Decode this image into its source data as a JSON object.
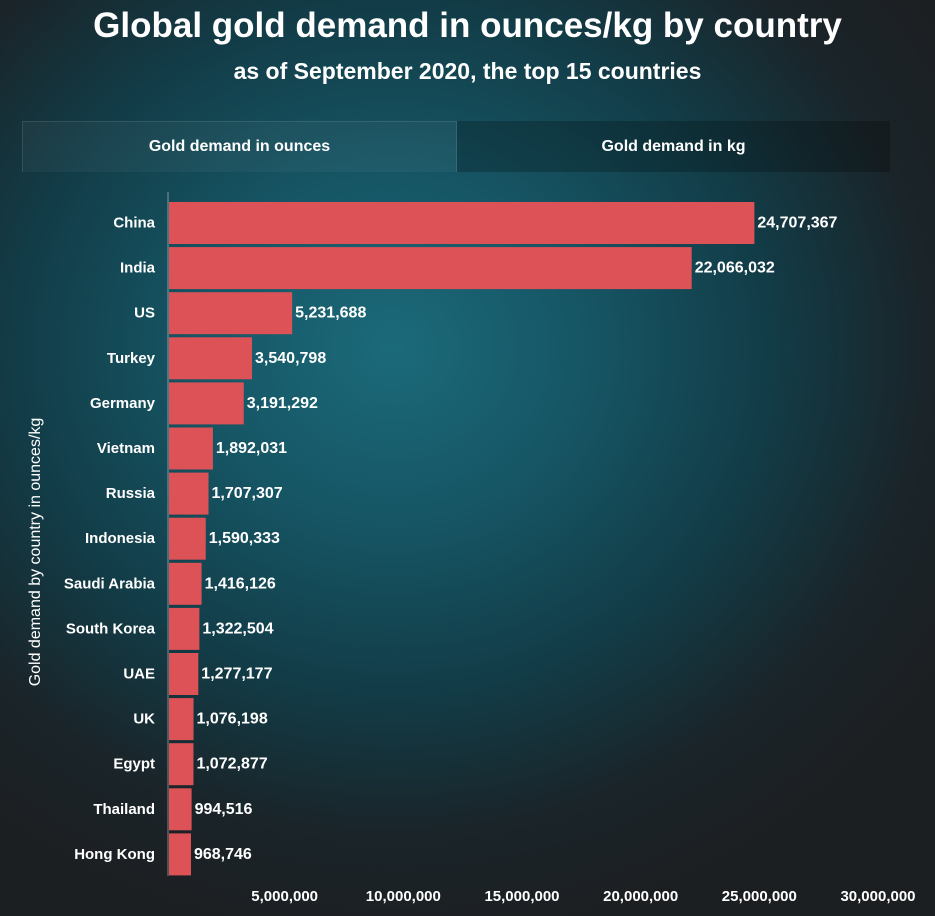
{
  "header": {
    "title": "Global gold demand in ounces/kg by country",
    "subtitle": "as of September 2020, the top 15 countries"
  },
  "tabs": [
    {
      "label": "Gold demand in ounces",
      "active": true
    },
    {
      "label": "Gold demand in kg",
      "active": false
    }
  ],
  "colors": {
    "bar": "#dd5257",
    "text": "#ffffff"
  },
  "chart_data": {
    "type": "bar",
    "orientation": "horizontal",
    "ylabel": "Gold demand by country in ounces/kg",
    "categories": [
      "China",
      "India",
      "US",
      "Turkey",
      "Germany",
      "Vietnam",
      "Russia",
      "Indonesia",
      "Saudi Arabia",
      "South Korea",
      "UAE",
      "UK",
      "Egypt",
      "Thailand",
      "Hong Kong"
    ],
    "values": [
      24707367,
      22066032,
      5231688,
      3540798,
      3191292,
      1892031,
      1707307,
      1590333,
      1416126,
      1322504,
      1277177,
      1076198,
      1072877,
      994516,
      968746
    ],
    "value_labels": [
      "24,707,367",
      "22,066,032",
      "5,231,688",
      "3,540,798",
      "3,191,292",
      "1,892,031",
      "1,707,307",
      "1,590,333",
      "1,416,126",
      "1,322,504",
      "1,277,177",
      "1,076,198",
      "1,072,877",
      "994,516",
      "968,746"
    ],
    "x_ticks": [
      5000000,
      10000000,
      15000000,
      20000000,
      25000000,
      30000000
    ],
    "x_tick_labels": [
      "5,000,000",
      "10,000,000",
      "15,000,000",
      "20,000,000",
      "25,000,000",
      "30,000,000"
    ],
    "xlim": [
      0,
      30000000
    ],
    "grid": false
  }
}
